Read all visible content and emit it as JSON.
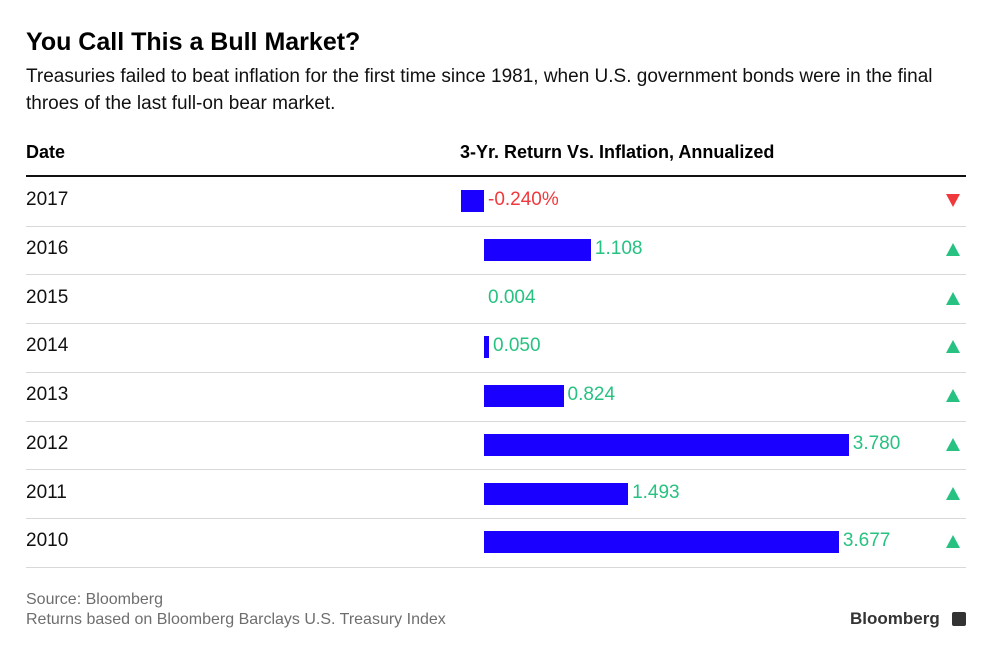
{
  "title": "You Call This a Bull Market?",
  "subtitle": "Treasuries failed to beat inflation for the first time since 1981, when U.S. government bonds were in the final throes of the last full-on bear market.",
  "header": {
    "date": "Date",
    "value": "3-Yr. Return Vs. Inflation, Annualized"
  },
  "chart_data": {
    "type": "bar",
    "orientation": "horizontal",
    "title": "You Call This a Bull Market?",
    "column_header": "3-Yr. Return Vs. Inflation, Annualized",
    "categories": [
      "2017",
      "2016",
      "2015",
      "2014",
      "2013",
      "2012",
      "2011",
      "2010"
    ],
    "values": [
      -0.24,
      1.108,
      0.004,
      0.05,
      0.824,
      3.78,
      1.493,
      3.677
    ],
    "value_labels": [
      "-0.240%",
      "1.108",
      "0.004",
      "0.050",
      "0.824",
      "3.780",
      "1.493",
      "3.677"
    ],
    "direction": [
      "down",
      "up",
      "up",
      "up",
      "up",
      "up",
      "up",
      "up"
    ],
    "colors": {
      "bar": "#1a00ff",
      "positive": "#27c281",
      "negative": "#f0393c"
    }
  },
  "footer": {
    "source": "Source: Bloomberg",
    "note": "Returns based on Bloomberg Barclays U.S. Treasury Index",
    "brand": "Bloomberg"
  }
}
